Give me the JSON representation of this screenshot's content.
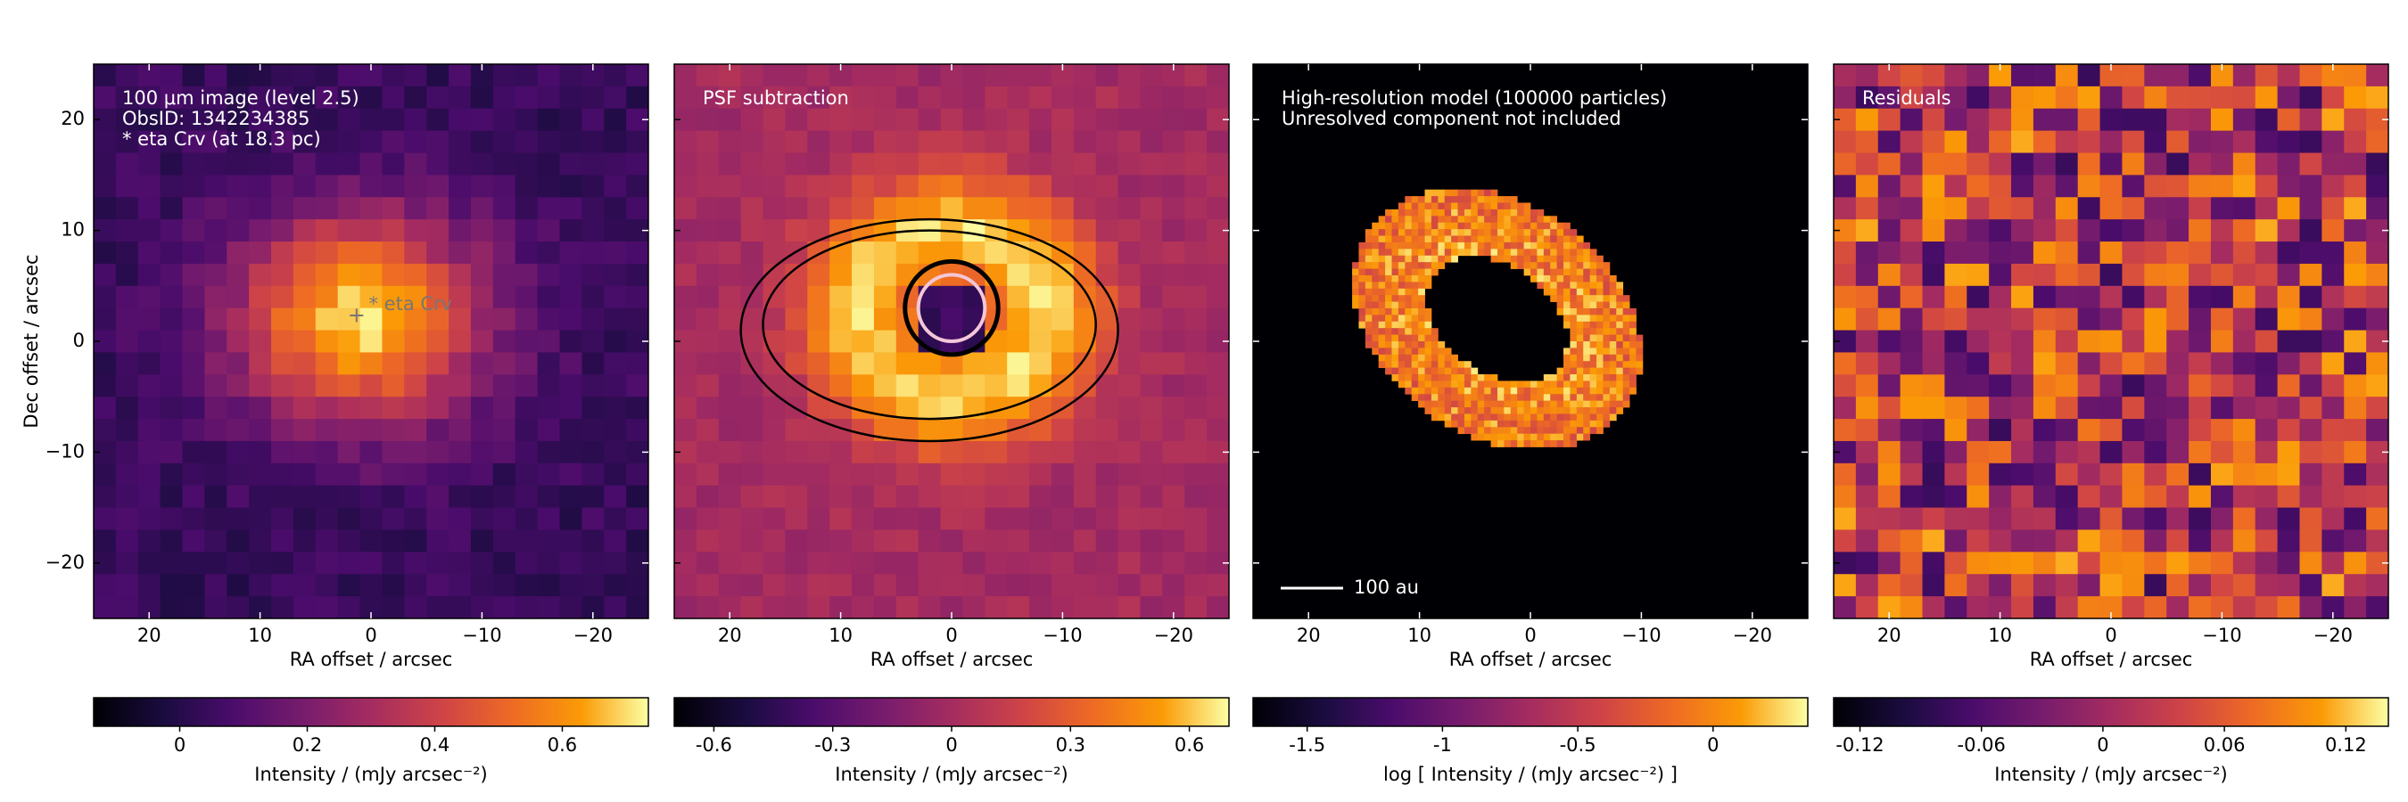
{
  "chart_data": [
    {
      "type": "image",
      "colormap": "inferno",
      "annotations": [
        "100 μm image (level 2.5)",
        "ObsID: 1342234385",
        "* eta Crv (at 18.3 pc)"
      ],
      "marker_label": "* eta Crv",
      "xlabel": "RA offset / arcsec",
      "ylabel": "Dec offset / arcsec",
      "xlim": [
        25,
        -25
      ],
      "ylim": [
        -25,
        25
      ],
      "xticks": [
        20,
        10,
        0,
        {
          "value": -10,
          "label": "−10"
        },
        {
          "value": -20,
          "label": "−20"
        }
      ],
      "yticks": [
        {
          "value": -20,
          "label": "−20"
        },
        {
          "value": -10,
          "label": "−10"
        },
        0,
        10,
        20
      ],
      "colorbar": {
        "lim": [
          -0.135,
          0.735
        ],
        "ticks": [
          0,
          0.2,
          0.4,
          0.6
        ],
        "label": "Intensity / (mJy arcsec⁻²)"
      }
    },
    {
      "type": "image",
      "colormap": "inferno",
      "annotations": [
        "PSF subtraction"
      ],
      "xlabel": "RA offset / arcsec",
      "xlim": [
        25,
        -25
      ],
      "ylim": [
        -25,
        25
      ],
      "xticks": [
        20,
        10,
        0,
        {
          "value": -10,
          "label": "−10"
        },
        {
          "value": -20,
          "label": "−20"
        }
      ],
      "colorbar": {
        "lim": [
          -0.7,
          0.7
        ],
        "ticks": [
          {
            "value": -0.6,
            "label": "-0.6"
          },
          {
            "value": -0.3,
            "label": "-0.3"
          },
          0,
          0.3,
          0.6
        ],
        "label": "Intensity / (mJy arcsec⁻²)"
      }
    },
    {
      "type": "image",
      "colormap": "inferno",
      "annotations": [
        "High-resolution model (100000 particles)",
        "Unresolved component not included"
      ],
      "scalebar_label": "100 au",
      "xlabel": "RA offset / arcsec",
      "xlim": [
        25,
        -25
      ],
      "ylim": [
        -25,
        25
      ],
      "xticks": [
        20,
        10,
        0,
        {
          "value": -10,
          "label": "−10"
        },
        {
          "value": -20,
          "label": "−20"
        }
      ],
      "colorbar": {
        "lim": [
          -1.7,
          0.35
        ],
        "ticks": [
          {
            "value": -1.5,
            "label": "-1.5"
          },
          {
            "value": -1,
            "label": "-1"
          },
          {
            "value": -0.5,
            "label": "-0.5"
          },
          0
        ],
        "label": "log [ Intensity / (mJy arcsec⁻²) ]"
      }
    },
    {
      "type": "image",
      "colormap": "inferno",
      "annotations": [
        "Residuals"
      ],
      "xlabel": "RA offset / arcsec",
      "xlim": [
        25,
        -25
      ],
      "ylim": [
        -25,
        25
      ],
      "xticks": [
        20,
        10,
        0,
        {
          "value": -10,
          "label": "−10"
        },
        {
          "value": -20,
          "label": "−20"
        }
      ],
      "colorbar": {
        "lim": [
          -0.133,
          0.141
        ],
        "ticks": [
          {
            "value": -0.12,
            "label": "-0.12"
          },
          {
            "value": -0.06,
            "label": "-0.06"
          },
          0,
          0.06,
          0.12
        ],
        "label": "Intensity / (mJy arcsec⁻²)"
      }
    }
  ]
}
